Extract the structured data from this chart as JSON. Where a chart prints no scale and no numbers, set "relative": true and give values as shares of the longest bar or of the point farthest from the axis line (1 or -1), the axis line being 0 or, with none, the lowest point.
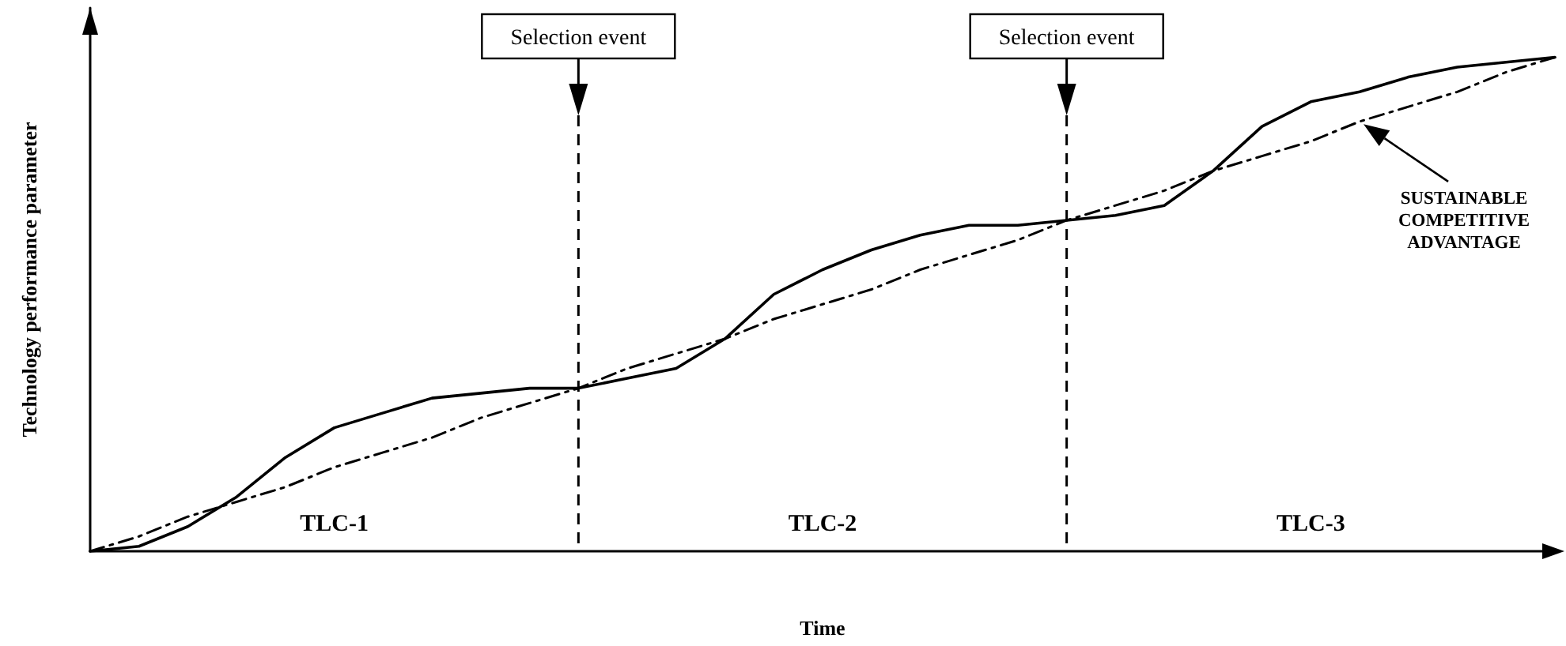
{
  "chart_data": {
    "type": "line",
    "relative": true,
    "xlabel": "Time",
    "ylabel": "Technology performance parameter",
    "marker": "none",
    "categories": [
      null,
      null,
      null,
      null,
      null,
      null,
      null,
      null,
      null,
      null,
      null,
      null,
      null,
      null,
      null,
      null,
      null,
      null,
      null,
      null,
      null,
      null,
      null,
      null,
      null,
      null,
      null,
      null,
      null,
      null,
      null
    ],
    "series": [
      {
        "color": "#000000",
        "line_style": "solid",
        "values": [
          0,
          0.01,
          0.05,
          0.11,
          0.19,
          0.25,
          0.28,
          0.31,
          0.32,
          0.33,
          0.33,
          0.35,
          0.37,
          0.43,
          0.52,
          0.57,
          0.61,
          0.64,
          0.66,
          0.66,
          0.67,
          0.68,
          0.7,
          0.77,
          0.86,
          0.91,
          0.93,
          0.96,
          0.98,
          0.99,
          1
        ]
      },
      {
        "color": "#000000",
        "line_style": "dashed",
        "values": [
          0,
          0.03,
          0.07,
          0.1,
          0.13,
          0.17,
          0.2,
          0.23,
          0.27,
          0.3,
          0.33,
          0.37,
          0.4,
          0.43,
          0.47,
          0.5,
          0.53,
          0.57,
          0.6,
          0.63,
          0.67,
          0.7,
          0.73,
          0.77,
          0.8,
          0.83,
          0.87,
          0.9,
          0.93,
          0.97,
          1
        ]
      }
    ],
    "annotations": [
      "Selection event",
      "Selection event",
      "TLC-1",
      "TLC-2",
      "TLC-3",
      "SUSTAINABLE COMPETITIVE ADVANTAGE"
    ]
  }
}
